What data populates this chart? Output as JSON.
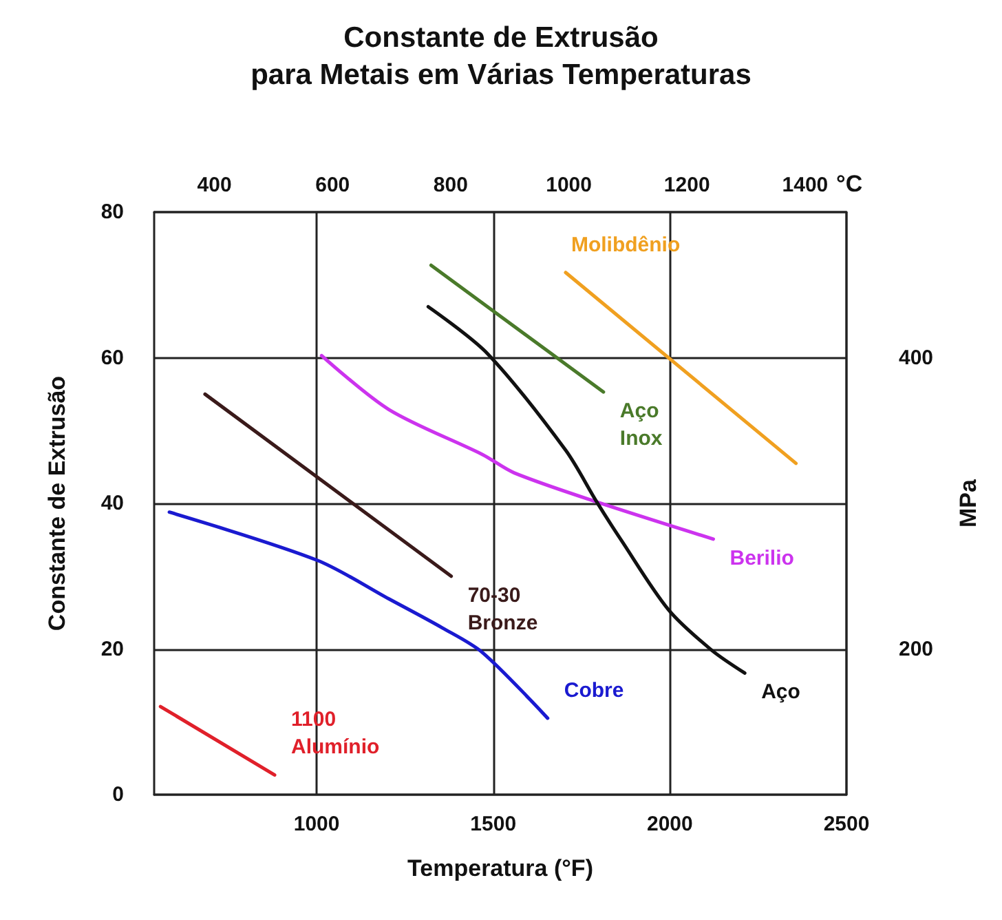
{
  "chart_data": {
    "type": "line",
    "title": "Constante de Extrusão",
    "subtitle": "para Metais em Várias Temperaturas",
    "xlabel": "Temperatura (°F)",
    "ylabel": "Constante de Extrusão",
    "y2label": "MPa",
    "x2label": "°C",
    "xlim": [
      540,
      2500
    ],
    "xticks": [
      1000,
      1500,
      2000,
      2500
    ],
    "ylim": [
      0,
      80
    ],
    "yticks": [
      0,
      20,
      40,
      60,
      80
    ],
    "x2lim": [
      298,
      1470
    ],
    "x2ticks": [
      400,
      600,
      800,
      1000,
      1200,
      1400
    ],
    "y2lim": [
      100,
      500
    ],
    "y2ticks": [
      200,
      400
    ],
    "grid": true,
    "legend": false,
    "marker": "none",
    "line_style": "solid",
    "series": [
      {
        "name": "1100\nAlumínio",
        "color": "#e0202a",
        "x": [
          558,
          881
        ],
        "values": [
          12.1,
          2.7
        ]
      },
      {
        "name": "Cobre",
        "color": "#1a1ad0",
        "x": [
          583,
          1001,
          1204,
          1356,
          1470,
          1654
        ],
        "values": [
          38.8,
          32.2,
          26.9,
          22.9,
          19.5,
          10.5
        ]
      },
      {
        "name": "70-30\nBronze",
        "color": "#3a1a1a",
        "x": [
          684,
          1381
        ],
        "values": [
          55.0,
          30.0
        ]
      },
      {
        "name": "Berilio",
        "color": "#cc33ee",
        "x": [
          1014,
          1204,
          1470,
          1559,
          1793,
          2123
        ],
        "values": [
          60.3,
          52.9,
          46.7,
          44.2,
          40.2,
          35.1
        ]
      },
      {
        "name": "Aço",
        "color": "#111111",
        "x": [
          1316,
          1483,
          1705,
          1793,
          1863,
          1996,
          2117,
          2212
        ],
        "values": [
          67.0,
          60.6,
          47.3,
          40.2,
          34.9,
          25.4,
          19.9,
          16.7
        ]
      },
      {
        "name": "Aço\nInox",
        "color": "#4a7a2a",
        "x": [
          1324,
          1812
        ],
        "values": [
          72.7,
          55.3
        ]
      },
      {
        "name": "Molibdênio",
        "color": "#f0a020",
        "x": [
          1705,
          2357
        ],
        "values": [
          71.7,
          45.5
        ]
      }
    ]
  }
}
